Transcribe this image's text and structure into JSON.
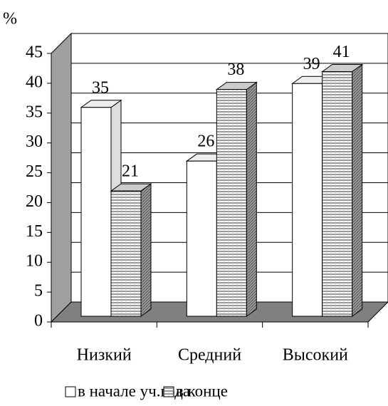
{
  "chart_data": {
    "type": "bar3d",
    "ylabel": "%",
    "categories": [
      "Низкий",
      "Средний",
      "Высокий"
    ],
    "series": [
      {
        "name": "в начале уч.года",
        "color": "#ffffff",
        "values": [
          35,
          26,
          39
        ]
      },
      {
        "name": "в конце",
        "color": "hatched",
        "values": [
          21,
          38,
          41
        ]
      }
    ],
    "ylim": [
      0,
      45
    ],
    "yticks": [
      0,
      5,
      10,
      15,
      20,
      25,
      30,
      35,
      40,
      45
    ],
    "grid": true,
    "legend": "bottom"
  }
}
